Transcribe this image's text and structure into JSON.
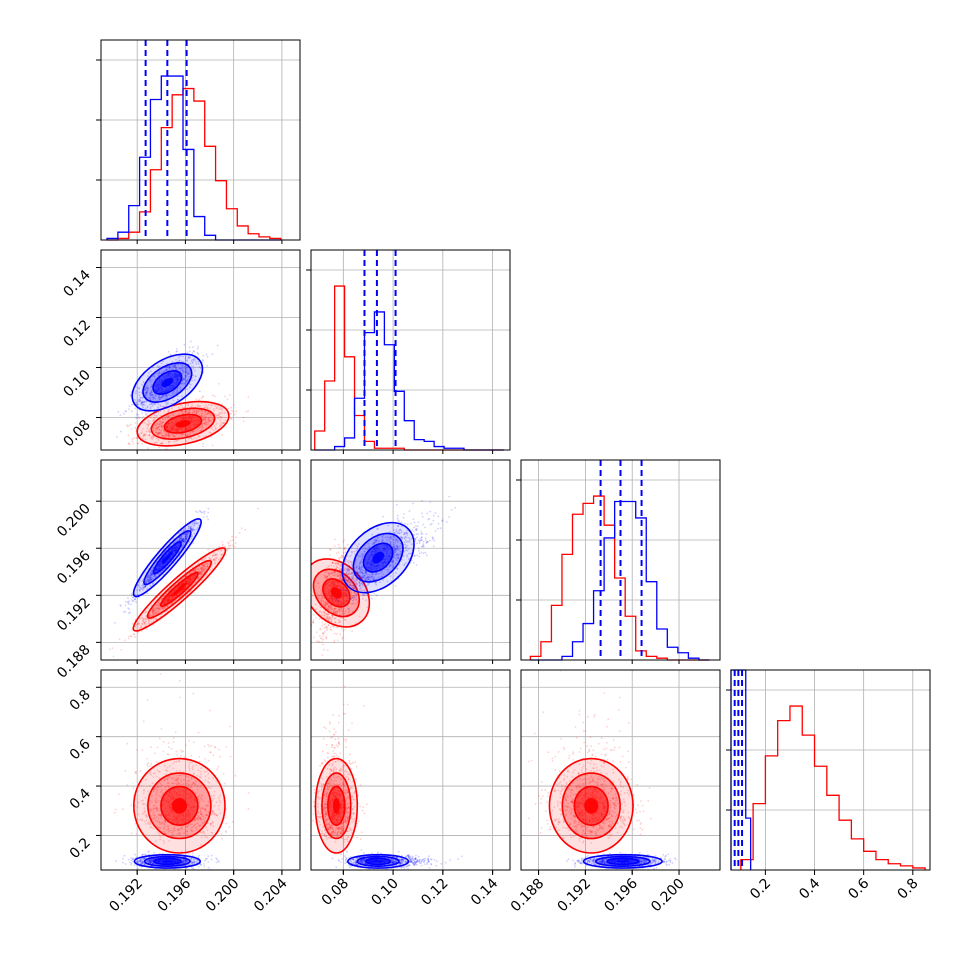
{
  "chart_data": {
    "type": "corner",
    "title": "",
    "series": [
      {
        "name": "",
        "color": "#ff0000"
      },
      {
        "name": "",
        "color": "#0000ff"
      }
    ],
    "grid": true,
    "axes": {
      "p0": {
        "range": [
          0.189,
          0.2055
        ],
        "ticks": [
          0.192,
          0.196,
          0.2,
          0.204
        ],
        "tick_labels": [
          "0.192",
          "0.196",
          "0.200",
          "0.204"
        ]
      },
      "p1": {
        "range": [
          0.067,
          0.147
        ],
        "ticks": [
          0.08,
          0.1,
          0.12,
          0.14
        ],
        "tick_labels": [
          "0.08",
          "0.10",
          "0.12",
          "0.14"
        ]
      },
      "p2": {
        "range": [
          0.1865,
          0.2035
        ],
        "ticks": [
          0.188,
          0.192,
          0.196,
          0.2
        ],
        "tick_labels": [
          "0.188",
          "0.192",
          "0.196",
          "0.200"
        ]
      },
      "p3": {
        "range": [
          0.06,
          0.87
        ],
        "ticks": [
          0.2,
          0.4,
          0.6,
          0.8
        ],
        "tick_labels": [
          "0.2",
          "0.4",
          "0.6",
          "0.8"
        ]
      }
    },
    "quantiles_blue": {
      "p0": [
        0.1927,
        0.1945,
        0.1961
      ],
      "p1": [
        0.0885,
        0.0935,
        0.101
      ],
      "p2": [
        0.1933,
        0.195,
        0.1968
      ],
      "p3": [
        0.075,
        0.09,
        0.105
      ]
    },
    "histograms": {
      "p0": {
        "bins": [
          0.1895,
          0.1904,
          0.1913,
          0.1922,
          0.1931,
          0.194,
          0.1949,
          0.1958,
          0.1967,
          0.1976,
          0.1985,
          0.1994,
          0.2003,
          0.2012,
          0.2021,
          0.203,
          0.2039
        ],
        "red": [
          0.0,
          0.01,
          0.05,
          0.18,
          0.45,
          0.72,
          0.93,
          0.97,
          0.89,
          0.6,
          0.38,
          0.2,
          0.09,
          0.04,
          0.02,
          0.01
        ],
        "blue": [
          0.01,
          0.05,
          0.22,
          0.53,
          0.9,
          1.05,
          1.05,
          0.58,
          0.15,
          0.03,
          0.0,
          0.0,
          0.0,
          0.0,
          0.0,
          0.0
        ]
      },
      "p1": {
        "bins": [
          0.0685,
          0.0725,
          0.0765,
          0.0805,
          0.0845,
          0.0885,
          0.0925,
          0.0965,
          0.1005,
          0.1045,
          0.1085,
          0.1125,
          0.1165,
          0.1205,
          0.1245,
          0.1285,
          0.1325,
          0.1365,
          0.1405,
          0.1445
        ],
        "red": [
          0.11,
          0.4,
          0.95,
          0.54,
          0.2,
          0.05,
          0.01,
          0.01,
          0.01,
          0.0,
          0.0,
          0.0,
          0.0,
          0.0,
          0.0,
          0.0,
          0.0,
          0.0,
          0.0
        ],
        "blue": [
          0.0,
          0.0,
          0.02,
          0.07,
          0.3,
          0.68,
          0.8,
          0.61,
          0.34,
          0.17,
          0.06,
          0.05,
          0.02,
          0.01,
          0.01,
          0.0,
          0.0,
          0.0,
          0.0
        ]
      },
      "p2": {
        "bins": [
          0.1873,
          0.1882,
          0.1891,
          0.19,
          0.1909,
          0.1918,
          0.1927,
          0.1936,
          0.1945,
          0.1954,
          0.1963,
          0.1972,
          0.1981,
          0.199,
          0.1999,
          0.2008,
          0.2017,
          0.2026
        ],
        "red": [
          0.02,
          0.1,
          0.3,
          0.58,
          0.8,
          0.86,
          0.9,
          0.74,
          0.45,
          0.24,
          0.05,
          0.02,
          0.01,
          0.0,
          0.0,
          0.0,
          0.0
        ],
        "blue": [
          0.0,
          0.0,
          0.0,
          0.02,
          0.1,
          0.2,
          0.38,
          0.67,
          0.87,
          0.87,
          0.78,
          0.43,
          0.17,
          0.07,
          0.04,
          0.01,
          0.0
        ]
      },
      "p3": {
        "bins": [
          0.1,
          0.15,
          0.2,
          0.25,
          0.3,
          0.35,
          0.4,
          0.45,
          0.5,
          0.55,
          0.6,
          0.65,
          0.7,
          0.75,
          0.8,
          0.85
        ],
        "red": [
          0.05,
          0.32,
          0.55,
          0.72,
          0.79,
          0.65,
          0.5,
          0.36,
          0.24,
          0.15,
          0.09,
          0.05,
          0.03,
          0.02,
          0.01
        ],
        "blue": [
          0.0,
          0.0,
          0.0,
          0.0,
          0.0,
          0.0,
          0.0,
          0.0,
          0.0,
          0.0,
          0.0,
          0.0,
          0.0,
          0.0,
          0.0
        ],
        "blue_spike": {
          "bins": [
            0.06,
            0.08,
            0.1,
            0.12,
            0.14
          ],
          "values": [
            2.7,
            3.2,
            1.2,
            0.25
          ]
        }
      }
    },
    "scatter_panels": [
      {
        "x": "p0",
        "y": "p1",
        "red": {
          "mean": [
            0.1958,
            0.0775
          ],
          "sd": [
            0.0018,
            0.0042
          ],
          "corr": 0.45
        },
        "blue": {
          "mean": [
            0.1945,
            0.094
          ],
          "sd": [
            0.0013,
            0.0058
          ],
          "corr": 0.7
        }
      },
      {
        "x": "p0",
        "y": "p2",
        "red": {
          "mean": [
            0.1955,
            0.1925
          ],
          "sd": [
            0.0018,
            0.0017
          ],
          "corr": 0.97
        },
        "blue": {
          "mean": [
            0.1945,
            0.1952
          ],
          "sd": [
            0.0013,
            0.0016
          ],
          "corr": 0.97
        }
      },
      {
        "x": "p1",
        "y": "p2",
        "red": {
          "mean": [
            0.0772,
            0.1922
          ],
          "sd": [
            0.004,
            0.0017
          ],
          "corr": 0.45
        },
        "blue": {
          "mean": [
            0.094,
            0.1952
          ],
          "sd": [
            0.0058,
            0.0016
          ],
          "corr": 0.72
        }
      },
      {
        "x": "p0",
        "y": "p3",
        "red": {
          "mean": [
            0.1955,
            0.32
          ],
          "sd": [
            0.0018,
            0.09
          ],
          "corr": 0.0
        },
        "blue": {
          "mean": [
            0.1945,
            0.095
          ],
          "sd": [
            0.0013,
            0.012
          ],
          "corr": 0.0
        }
      },
      {
        "x": "p1",
        "y": "p3",
        "red": {
          "mean": [
            0.0772,
            0.32
          ],
          "sd": [
            0.004,
            0.09
          ],
          "corr": 0.0
        },
        "blue": {
          "mean": [
            0.094,
            0.095
          ],
          "sd": [
            0.0058,
            0.012
          ],
          "corr": 0.0
        }
      },
      {
        "x": "p2",
        "y": "p3",
        "red": {
          "mean": [
            0.1925,
            0.32
          ],
          "sd": [
            0.0017,
            0.09
          ],
          "corr": 0.0
        },
        "blue": {
          "mean": [
            0.1952,
            0.095
          ],
          "sd": [
            0.0016,
            0.012
          ],
          "corr": 0.0
        }
      }
    ]
  }
}
